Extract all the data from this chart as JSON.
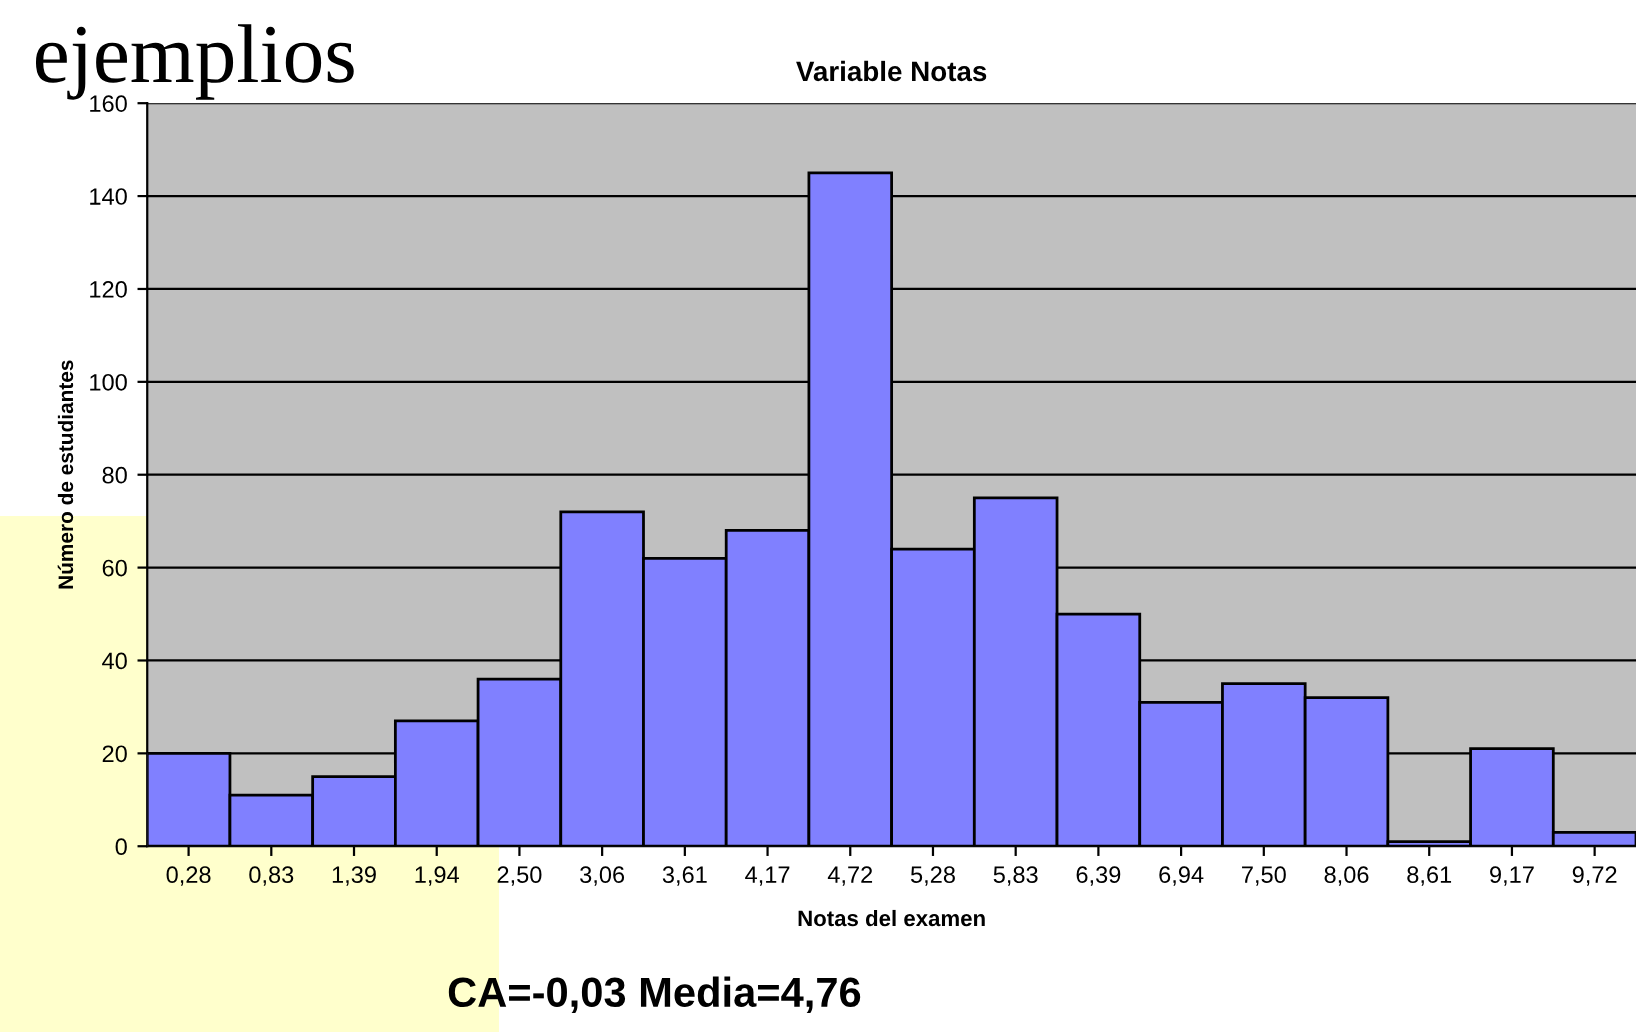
{
  "chart_data": {
    "type": "bar",
    "title": "Variable Notas",
    "xlabel": "Notas del examen",
    "ylabel": "Número de estudiantes",
    "annotations": [
      "ejemplios",
      "CA=-0,03 Media=4,76"
    ],
    "categories": [
      "0,28",
      "0,83",
      "1,39",
      "1,94",
      "2,50",
      "3,06",
      "3,61",
      "4,17",
      "4,72",
      "5,28",
      "5,83",
      "6,39",
      "6,94",
      "7,50",
      "8,06",
      "8,61",
      "9,17",
      "9,72"
    ],
    "values": [
      20,
      11,
      15,
      27,
      36,
      72,
      62,
      68,
      145,
      64,
      75,
      50,
      31,
      35,
      32,
      1,
      21,
      3
    ],
    "color": "#8080ff",
    "ylim": [
      0,
      160
    ],
    "yticks": [
      0,
      20,
      40,
      60,
      80,
      100,
      120,
      140,
      160
    ],
    "grid": "y"
  }
}
